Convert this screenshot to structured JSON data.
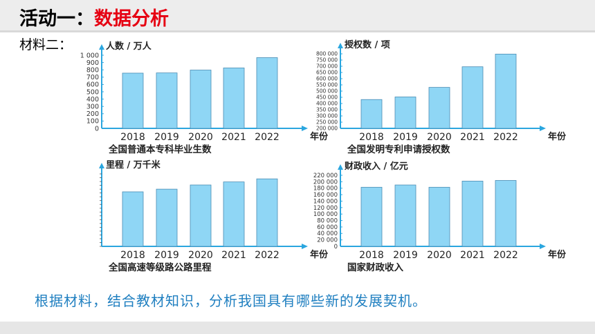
{
  "header": {
    "title_prefix": "活动一：",
    "title_main": "数据分析"
  },
  "material_label": "材料二：",
  "question": "根据材料，结合教材知识，分析我国具有哪些新的发展契机。",
  "colors": {
    "bar": "#8fd6f5",
    "bar_stroke": "#4a8cb3",
    "axis": "#2aa6df",
    "title_red": "#e60012",
    "question": "#1f7fc0"
  },
  "chart_data": [
    {
      "type": "bar",
      "title": "全国普通本专科毕业生数",
      "ylabel": "人数 / 万人",
      "xlabel": "年份",
      "categories": [
        "2018",
        "2019",
        "2020",
        "2021",
        "2022"
      ],
      "values": [
        755,
        758,
        797,
        826,
        967
      ],
      "ylim": [
        0,
        1000
      ],
      "yticks": [
        "0",
        "100",
        "200",
        "300",
        "400",
        "500",
        "600",
        "700",
        "800",
        "900",
        "1 000"
      ]
    },
    {
      "type": "bar",
      "title": "全国发明专利申请授权数",
      "ylabel": "授权数 / 项",
      "xlabel": "年份",
      "categories": [
        "2018",
        "2019",
        "2020",
        "2021",
        "2022"
      ],
      "values": [
        432000,
        453000,
        530000,
        696000,
        798000
      ],
      "ylim": [
        200000,
        800000
      ],
      "yticks": [
        "200 000",
        "250 000",
        "300 000",
        "350 000",
        "400 000",
        "450 000",
        "500 000",
        "550 000",
        "600 000",
        "650 000",
        "700 000",
        "750 000",
        "800 000"
      ]
    },
    {
      "type": "bar",
      "title": "全国高速等级路公路里程",
      "ylabel": "里程 / 万千米",
      "xlabel": "年份",
      "categories": [
        "2018",
        "2019",
        "2020",
        "2021",
        "2022"
      ],
      "values": [
        14.3,
        15.0,
        16.1,
        16.9,
        17.7
      ],
      "ylim": [
        0,
        19
      ]
    },
    {
      "type": "bar",
      "title": "国家财政收入",
      "ylabel": "财政收入 / 亿元",
      "xlabel": "年份",
      "categories": [
        "2018",
        "2019",
        "2020",
        "2021",
        "2022"
      ],
      "values": [
        183000,
        190000,
        183000,
        202000,
        204000
      ],
      "ylim": [
        0,
        220000
      ],
      "yticks": [
        "0",
        "20 000",
        "40 000",
        "60 000",
        "80 000",
        "100 000",
        "120 000",
        "140 000",
        "160 000",
        "180 000",
        "200 000",
        "220 000"
      ]
    }
  ]
}
